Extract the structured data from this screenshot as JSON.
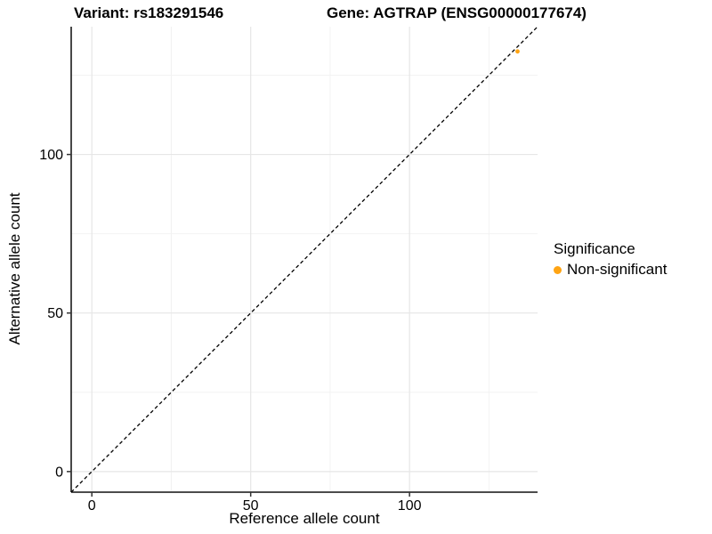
{
  "chart_data": {
    "type": "scatter",
    "title_variant": "Variant: rs183291546",
    "title_gene": "Gene: AGTRAP (ENSG00000177674)",
    "xlabel": "Reference allele count",
    "ylabel": "Alternative allele count",
    "xlim": [
      -6.5,
      140.3
    ],
    "ylim": [
      -6.5,
      140.3
    ],
    "x_ticks_major": [
      0,
      50,
      100
    ],
    "x_ticks_minor": [
      25,
      75,
      125
    ],
    "y_ticks_major": [
      0,
      50,
      100
    ],
    "y_ticks_minor": [
      25,
      75,
      125
    ],
    "grid": "on",
    "identity_line": {
      "style": "dashed",
      "slope": 1,
      "intercept": 0,
      "from": -6.5,
      "to": 140.3
    },
    "series": [
      {
        "name": "Non-significant",
        "color": "#FFA413",
        "points": [
          {
            "x": 134,
            "y": 132.5
          }
        ]
      }
    ],
    "legend": {
      "title": "Significance",
      "position": "right",
      "entries": [
        {
          "label": "Non-significant",
          "color": "#FFA413"
        }
      ]
    }
  },
  "colors": {
    "background": "#ffffff",
    "axis_line": "#333333",
    "tick_mark": "#333333",
    "grid_major": "#e6e6e6",
    "grid_minor": "#f2f2f2",
    "identity_line": "#000000",
    "point": "#FFA413",
    "text": "#000000"
  }
}
